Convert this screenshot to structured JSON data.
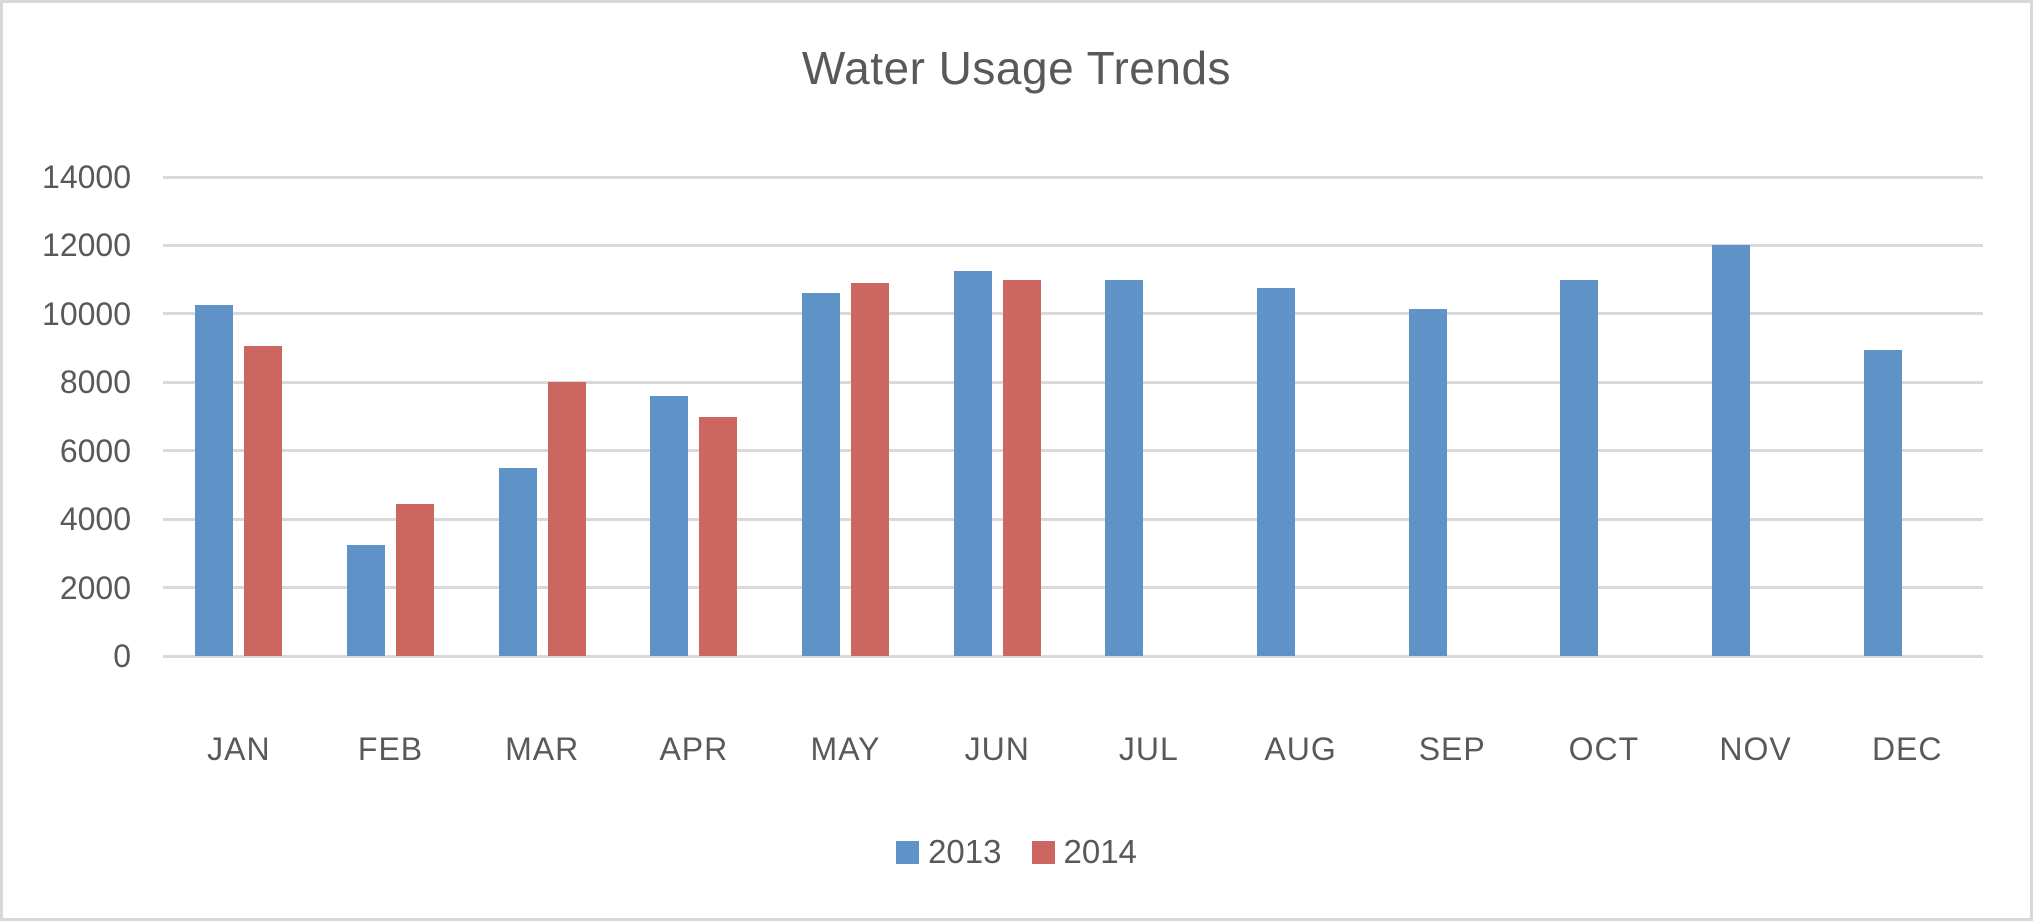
{
  "title": "Water Usage Trends",
  "colors": {
    "series_2013": "#5F93C8",
    "series_2014": "#CB6660",
    "gridline": "#D9D9D9",
    "text": "#595959",
    "border": "#D8D8D8"
  },
  "legend": {
    "items": [
      {
        "label": "2013",
        "color": "#5F93C8"
      },
      {
        "label": "2014",
        "color": "#CB6660"
      }
    ]
  },
  "chart_data": {
    "type": "bar",
    "title": "Water Usage Trends",
    "categories": [
      "JAN",
      "FEB",
      "MAR",
      "APR",
      "MAY",
      "JUN",
      "JUL",
      "AUG",
      "SEP",
      "OCT",
      "NOV",
      "DEC"
    ],
    "series": [
      {
        "name": "2013",
        "color": "#5F93C8",
        "values": [
          10250,
          3250,
          5500,
          7600,
          10600,
          11250,
          11000,
          10750,
          10150,
          11000,
          12000,
          8950
        ]
      },
      {
        "name": "2014",
        "color": "#CB6660",
        "values": [
          9050,
          4450,
          8000,
          7000,
          10900,
          11000,
          null,
          null,
          null,
          null,
          null,
          null
        ]
      }
    ],
    "xlabel": "",
    "ylabel": "",
    "ylim": [
      0,
      14000
    ],
    "ytick_step": 2000,
    "yticks": [
      0,
      2000,
      4000,
      6000,
      8000,
      10000,
      12000,
      14000
    ],
    "grid": "horizontal",
    "legend_position": "bottom"
  }
}
